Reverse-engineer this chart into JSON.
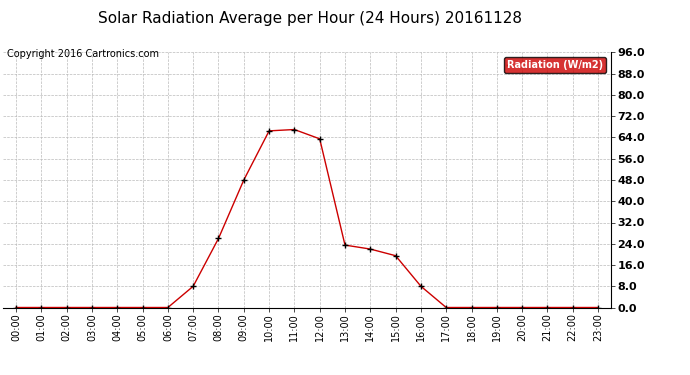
{
  "title": "Solar Radiation Average per Hour (24 Hours) 20161128",
  "copyright_text": "Copyright 2016 Cartronics.com",
  "legend_label": "Radiation (W/m2)",
  "hours": [
    "00:00",
    "01:00",
    "02:00",
    "03:00",
    "04:00",
    "05:00",
    "06:00",
    "07:00",
    "08:00",
    "09:00",
    "10:00",
    "11:00",
    "12:00",
    "13:00",
    "14:00",
    "15:00",
    "16:00",
    "17:00",
    "18:00",
    "19:00",
    "20:00",
    "21:00",
    "22:00",
    "23:00"
  ],
  "values": [
    0.0,
    0.0,
    0.0,
    0.0,
    0.0,
    0.0,
    0.0,
    8.0,
    26.0,
    48.0,
    66.5,
    67.0,
    63.5,
    23.5,
    22.0,
    19.5,
    8.0,
    0.0,
    0.0,
    0.0,
    0.0,
    0.0,
    0.0,
    0.0
  ],
  "ylim": [
    0.0,
    96.0
  ],
  "yticks": [
    0.0,
    8.0,
    16.0,
    24.0,
    32.0,
    40.0,
    48.0,
    56.0,
    64.0,
    72.0,
    80.0,
    88.0,
    96.0
  ],
  "line_color": "#cc0000",
  "marker_color": "#000000",
  "background_color": "#ffffff",
  "grid_color": "#bbbbbb",
  "title_fontsize": 11,
  "copyright_fontsize": 7,
  "tick_fontsize": 7,
  "ytick_fontsize": 8,
  "legend_bg": "#cc0000",
  "legend_text_color": "#ffffff",
  "legend_fontsize": 7
}
